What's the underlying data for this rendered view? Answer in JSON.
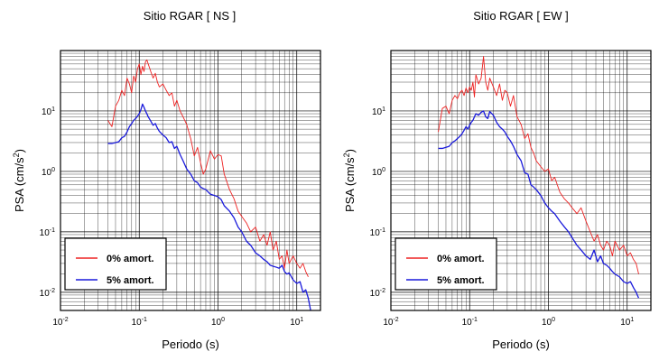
{
  "chart_data": [
    {
      "type": "line",
      "title": "Sitio RGAR [ NS ]",
      "xlabel": "Periodo (s)",
      "ylabel": "PSA (cm/s²)",
      "xscale": "log",
      "yscale": "log",
      "xlim": [
        0.01,
        20
      ],
      "ylim": [
        0.005,
        100
      ],
      "grid": true,
      "legend_position": "bottom-left",
      "x_ticks": [
        {
          "base": "10",
          "exp": "-2"
        },
        {
          "base": "10",
          "exp": "-1"
        },
        {
          "base": "10",
          "exp": "0"
        },
        {
          "base": "10",
          "exp": "1"
        }
      ],
      "y_ticks": [
        {
          "base": "10",
          "exp": "-2"
        },
        {
          "base": "10",
          "exp": "-1"
        },
        {
          "base": "10",
          "exp": "0"
        },
        {
          "base": "10",
          "exp": "1"
        }
      ],
      "series": [
        {
          "name": "0% amort.",
          "color": "#ee2222",
          "x": [
            0.04,
            0.045,
            0.05,
            0.055,
            0.06,
            0.065,
            0.07,
            0.075,
            0.08,
            0.085,
            0.09,
            0.095,
            0.1,
            0.105,
            0.11,
            0.115,
            0.12,
            0.125,
            0.13,
            0.14,
            0.15,
            0.16,
            0.17,
            0.18,
            0.2,
            0.22,
            0.24,
            0.26,
            0.28,
            0.3,
            0.33,
            0.36,
            0.4,
            0.45,
            0.5,
            0.55,
            0.6,
            0.65,
            0.7,
            0.8,
            0.9,
            1.0,
            1.1,
            1.2,
            1.4,
            1.6,
            1.8,
            2.0,
            2.3,
            2.6,
            3.0,
            3.4,
            3.8,
            4.2,
            4.6,
            5.0,
            5.5,
            6.0,
            6.5,
            7.0,
            7.5,
            8.0,
            9.0,
            10.0,
            11.0,
            12.0,
            13.0,
            14.0
          ],
          "values": [
            7,
            5.5,
            12,
            15,
            22,
            18,
            35,
            28,
            20,
            38,
            30,
            50,
            60,
            40,
            55,
            45,
            65,
            70,
            60,
            45,
            35,
            42,
            30,
            25,
            28,
            22,
            18,
            20,
            12,
            15,
            10,
            8,
            6,
            3.5,
            1.8,
            2.5,
            1.4,
            0.9,
            1.1,
            2.2,
            1.6,
            1.9,
            1.8,
            0.9,
            0.5,
            0.35,
            0.22,
            0.18,
            0.14,
            0.1,
            0.12,
            0.07,
            0.09,
            0.06,
            0.1,
            0.05,
            0.07,
            0.035,
            0.04,
            0.025,
            0.05,
            0.03,
            0.04,
            0.03,
            0.025,
            0.03,
            0.022,
            0.018
          ]
        },
        {
          "name": "5% amort.",
          "color": "#1a1adb",
          "x": [
            0.04,
            0.045,
            0.05,
            0.055,
            0.06,
            0.065,
            0.07,
            0.075,
            0.08,
            0.085,
            0.09,
            0.095,
            0.1,
            0.105,
            0.11,
            0.115,
            0.12,
            0.125,
            0.13,
            0.14,
            0.15,
            0.16,
            0.17,
            0.18,
            0.2,
            0.22,
            0.24,
            0.26,
            0.28,
            0.3,
            0.33,
            0.36,
            0.4,
            0.45,
            0.5,
            0.55,
            0.6,
            0.65,
            0.7,
            0.8,
            0.9,
            1.0,
            1.1,
            1.2,
            1.4,
            1.6,
            1.8,
            2.0,
            2.3,
            2.6,
            3.0,
            3.4,
            3.8,
            4.2,
            4.6,
            5.0,
            5.5,
            6.0,
            6.5,
            7.0,
            7.5,
            8.0,
            9.0,
            10.0,
            11.0,
            12.0,
            13.0,
            14.0,
            15.0
          ],
          "values": [
            2.9,
            2.9,
            3.0,
            3.1,
            3.6,
            3.8,
            4.5,
            5.5,
            6.2,
            7.0,
            7.5,
            8.2,
            9.0,
            10.5,
            13.0,
            11.5,
            10.0,
            9.0,
            8.0,
            6.8,
            5.8,
            6.2,
            5.2,
            4.6,
            4.0,
            3.6,
            3.0,
            3.1,
            2.4,
            2.6,
            1.9,
            1.5,
            1.1,
            0.9,
            0.7,
            0.65,
            0.55,
            0.52,
            0.5,
            0.42,
            0.4,
            0.38,
            0.34,
            0.27,
            0.22,
            0.17,
            0.12,
            0.1,
            0.07,
            0.06,
            0.045,
            0.04,
            0.035,
            0.032,
            0.028,
            0.027,
            0.026,
            0.025,
            0.028,
            0.022,
            0.02,
            0.021,
            0.016,
            0.014,
            0.015,
            0.01,
            0.011,
            0.008,
            0.005
          ]
        }
      ]
    },
    {
      "type": "line",
      "title": "Sitio RGAR [ EW ]",
      "xlabel": "Periodo (s)",
      "ylabel": "PSA (cm/s²)",
      "xscale": "log",
      "yscale": "log",
      "xlim": [
        0.01,
        20
      ],
      "ylim": [
        0.005,
        100
      ],
      "grid": true,
      "legend_position": "bottom-left",
      "x_ticks": [
        {
          "base": "10",
          "exp": "-2"
        },
        {
          "base": "10",
          "exp": "-1"
        },
        {
          "base": "10",
          "exp": "0"
        },
        {
          "base": "10",
          "exp": "1"
        }
      ],
      "y_ticks": [
        {
          "base": "10",
          "exp": "-2"
        },
        {
          "base": "10",
          "exp": "-1"
        },
        {
          "base": "10",
          "exp": "0"
        },
        {
          "base": "10",
          "exp": "1"
        }
      ],
      "series": [
        {
          "name": "0% amort.",
          "color": "#ee2222",
          "x": [
            0.04,
            0.045,
            0.05,
            0.055,
            0.06,
            0.065,
            0.07,
            0.075,
            0.08,
            0.085,
            0.09,
            0.095,
            0.1,
            0.105,
            0.11,
            0.115,
            0.12,
            0.13,
            0.14,
            0.15,
            0.16,
            0.17,
            0.18,
            0.2,
            0.22,
            0.24,
            0.26,
            0.28,
            0.3,
            0.33,
            0.36,
            0.4,
            0.45,
            0.5,
            0.55,
            0.6,
            0.65,
            0.7,
            0.8,
            0.9,
            1.0,
            1.1,
            1.2,
            1.4,
            1.6,
            1.8,
            2.0,
            2.3,
            2.6,
            3.0,
            3.4,
            3.8,
            4.2,
            4.6,
            5.0,
            5.5,
            6.0,
            6.5,
            7.0,
            8.0,
            9.0,
            10.0,
            11.0,
            12.0,
            13.0,
            14.0
          ],
          "values": [
            4.5,
            11,
            12,
            9,
            15,
            18,
            16,
            20,
            22,
            18,
            24,
            20,
            25,
            22,
            30,
            17,
            40,
            28,
            35,
            80,
            30,
            22,
            35,
            25,
            18,
            28,
            15,
            22,
            20,
            12,
            18,
            8,
            6,
            3.5,
            4.2,
            2.5,
            2.0,
            1.5,
            1.2,
            1.0,
            1.1,
            0.7,
            0.8,
            0.45,
            0.35,
            0.3,
            0.25,
            0.2,
            0.25,
            0.15,
            0.1,
            0.07,
            0.09,
            0.06,
            0.05,
            0.07,
            0.06,
            0.04,
            0.07,
            0.05,
            0.06,
            0.04,
            0.045,
            0.035,
            0.03,
            0.02
          ]
        },
        {
          "name": "5% amort.",
          "color": "#1a1adb",
          "x": [
            0.04,
            0.045,
            0.05,
            0.055,
            0.06,
            0.065,
            0.07,
            0.075,
            0.08,
            0.085,
            0.09,
            0.095,
            0.1,
            0.105,
            0.11,
            0.115,
            0.12,
            0.13,
            0.14,
            0.15,
            0.16,
            0.17,
            0.18,
            0.2,
            0.22,
            0.24,
            0.26,
            0.28,
            0.3,
            0.33,
            0.36,
            0.4,
            0.45,
            0.5,
            0.55,
            0.6,
            0.65,
            0.7,
            0.8,
            0.9,
            1.0,
            1.1,
            1.2,
            1.4,
            1.6,
            1.8,
            2.0,
            2.3,
            2.6,
            3.0,
            3.4,
            3.8,
            4.2,
            4.6,
            5.0,
            5.5,
            6.0,
            6.5,
            7.0,
            8.0,
            9.0,
            10.0,
            11.0,
            12.0,
            13.0,
            14.0
          ],
          "values": [
            2.4,
            2.4,
            2.5,
            2.6,
            3.0,
            3.2,
            3.5,
            3.8,
            4.2,
            4.8,
            5.5,
            5.0,
            5.8,
            6.5,
            7.0,
            8.0,
            9.0,
            8.5,
            9.5,
            10.0,
            8.0,
            7.5,
            9.8,
            8.5,
            6.5,
            5.5,
            5.0,
            4.5,
            3.8,
            3.2,
            2.6,
            1.9,
            1.5,
            0.95,
            0.9,
            0.6,
            0.55,
            0.5,
            0.4,
            0.3,
            0.25,
            0.22,
            0.2,
            0.15,
            0.12,
            0.1,
            0.08,
            0.06,
            0.05,
            0.04,
            0.035,
            0.05,
            0.032,
            0.04,
            0.03,
            0.028,
            0.025,
            0.022,
            0.02,
            0.018,
            0.015,
            0.014,
            0.015,
            0.012,
            0.01,
            0.008
          ]
        }
      ]
    }
  ]
}
